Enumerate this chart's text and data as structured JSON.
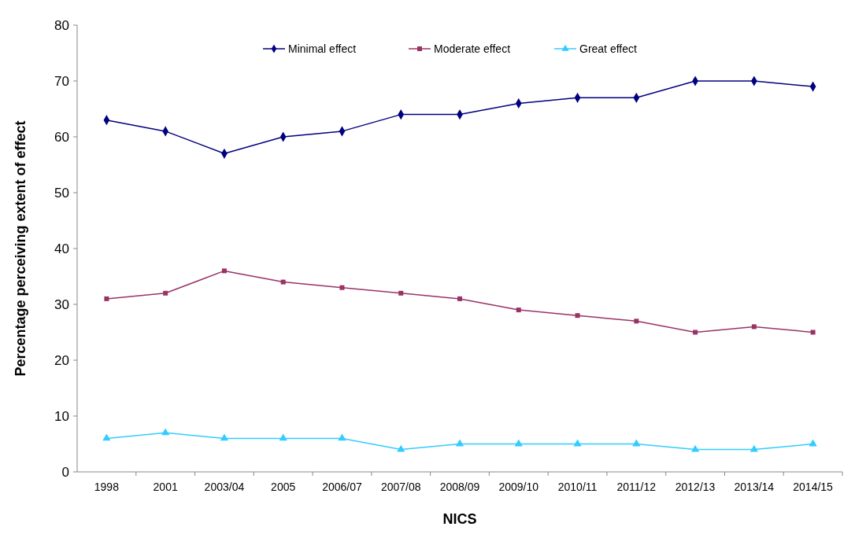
{
  "chart_data": {
    "type": "line",
    "xlabel": "NICS",
    "ylabel": "Percentage perceiving extent of effect",
    "categories": [
      "1998",
      "2001",
      "2003/04",
      "2005",
      "2006/07",
      "2007/08",
      "2008/09",
      "2009/10",
      "2010/11",
      "2011/12",
      "2012/13",
      "2013/14",
      "2014/15"
    ],
    "series": [
      {
        "name": "Minimal effect",
        "color": "#000080",
        "marker": "diamond",
        "values": [
          63,
          61,
          57,
          60,
          61,
          64,
          64,
          66,
          67,
          67,
          70,
          70,
          69
        ]
      },
      {
        "name": "Moderate effect",
        "color": "#993366",
        "marker": "square",
        "values": [
          31,
          32,
          36,
          34,
          33,
          32,
          31,
          29,
          28,
          27,
          25,
          26,
          25
        ]
      },
      {
        "name": "Great effect",
        "color": "#33ccff",
        "marker": "triangle",
        "values": [
          6,
          7,
          6,
          6,
          6,
          4,
          5,
          5,
          5,
          5,
          4,
          4,
          5
        ]
      }
    ],
    "ylim": [
      0,
      80
    ],
    "yticks": [
      0,
      10,
      20,
      30,
      40,
      50,
      60,
      70,
      80
    ],
    "grid": false,
    "legend": "top",
    "line_style": "solid"
  }
}
